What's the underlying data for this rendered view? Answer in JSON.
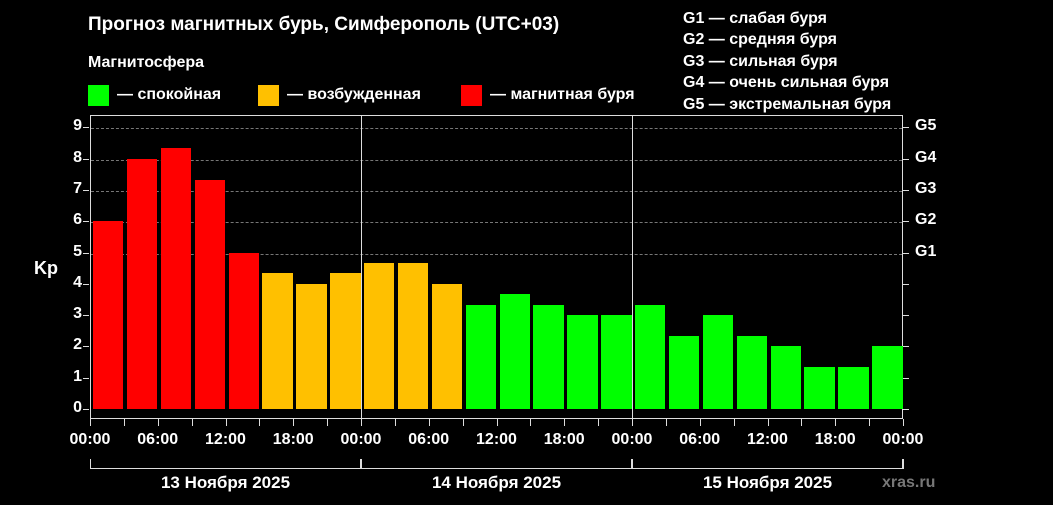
{
  "header": {
    "title": "Прогноз магнитных бурь, Симферополь (UTC+03)",
    "subtitle": "Магнитосфера"
  },
  "legend": [
    {
      "label": "— спокойная",
      "color": "#00ff00"
    },
    {
      "label": "— возбужденная",
      "color": "#ffc000"
    },
    {
      "label": "— магнитная буря",
      "color": "#ff0000"
    }
  ],
  "g_legend": [
    "G1 — слабая буря",
    "G2 — средняя буря",
    "G3 — сильная буря",
    "G4 — очень сильная буря",
    "G5 — экстремальная буря"
  ],
  "watermark": "xras.ru",
  "chart_data": {
    "type": "bar",
    "title": "Прогноз магнитных бурь, Симферополь (UTC+03)",
    "ylabel": "Kp",
    "ylim": [
      0,
      9
    ],
    "yticks": [
      0,
      1,
      2,
      3,
      4,
      5,
      6,
      7,
      8,
      9
    ],
    "right_axis_ticks": [
      {
        "value": 5,
        "label": "G1"
      },
      {
        "value": 6,
        "label": "G2"
      },
      {
        "value": 7,
        "label": "G3"
      },
      {
        "value": 8,
        "label": "G4"
      },
      {
        "value": 9,
        "label": "G5"
      }
    ],
    "grid": "dashed horizontal at 5,6,7,8,9",
    "xtick_labels": [
      "00:00",
      "06:00",
      "12:00",
      "18:00",
      "00:00",
      "06:00",
      "12:00",
      "18:00",
      "00:00",
      "06:00",
      "12:00",
      "18:00",
      "00:00"
    ],
    "days": [
      "13 Ноября 2025",
      "14 Ноября 2025",
      "15 Ноября 2025"
    ],
    "categories": [
      "13 00-03",
      "13 03-06",
      "13 06-09",
      "13 09-12",
      "13 12-15",
      "13 15-18",
      "13 18-21",
      "13 21-24",
      "14 00-03",
      "14 03-06",
      "14 06-09",
      "14 09-12",
      "14 12-15",
      "14 15-18",
      "14 18-21",
      "14 21-24",
      "15 00-03",
      "15 03-06",
      "15 06-09",
      "15 09-12",
      "15 12-15",
      "15 15-18",
      "15 18-21",
      "15 21-24"
    ],
    "values": [
      6,
      8,
      8.33,
      7.33,
      5,
      4.33,
      4,
      4.33,
      4.67,
      4.67,
      4,
      3.33,
      3.67,
      3.33,
      3,
      3,
      3.33,
      2.33,
      3,
      2.33,
      2,
      1.33,
      1.33,
      2
    ],
    "status": [
      "storm",
      "storm",
      "storm",
      "storm",
      "storm",
      "excited",
      "excited",
      "excited",
      "excited",
      "excited",
      "excited",
      "quiet",
      "quiet",
      "quiet",
      "quiet",
      "quiet",
      "quiet",
      "quiet",
      "quiet",
      "quiet",
      "quiet",
      "quiet",
      "quiet",
      "quiet"
    ],
    "colors": {
      "quiet": "#00ff00",
      "excited": "#ffc000",
      "storm": "#ff0000"
    }
  }
}
